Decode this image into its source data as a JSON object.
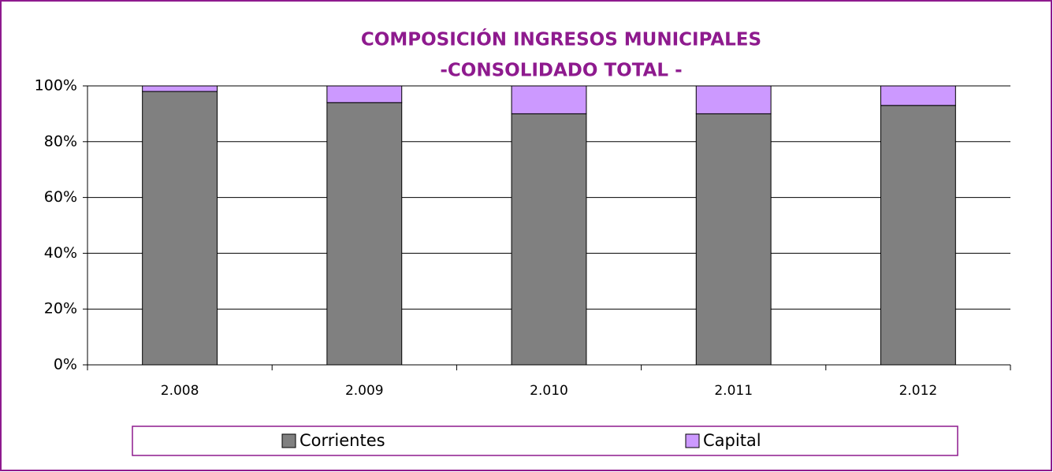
{
  "chart_data": {
    "type": "stacked_bar",
    "title": "COMPOSICIÓN INGRESOS MUNICIPALES",
    "subtitle": "-CONSOLIDADO TOTAL -",
    "categories": [
      "2.008",
      "2.009",
      "2.010",
      "2.011",
      "2.012"
    ],
    "series": [
      {
        "name": "Corrientes",
        "color": "#808080",
        "values": [
          98,
          94,
          90,
          90,
          93
        ]
      },
      {
        "name": "Capital",
        "color": "#cc99ff",
        "values": [
          2,
          6,
          10,
          10,
          7
        ]
      }
    ],
    "ylim": [
      0,
      100
    ],
    "yticks": [
      {
        "value": 0,
        "label": "0%"
      },
      {
        "value": 20,
        "label": "20%"
      },
      {
        "value": 40,
        "label": "40%"
      },
      {
        "value": 60,
        "label": "60%"
      },
      {
        "value": 80,
        "label": "80%"
      },
      {
        "value": 100,
        "label": "100%"
      }
    ],
    "grid": true,
    "legend": "bottom"
  }
}
